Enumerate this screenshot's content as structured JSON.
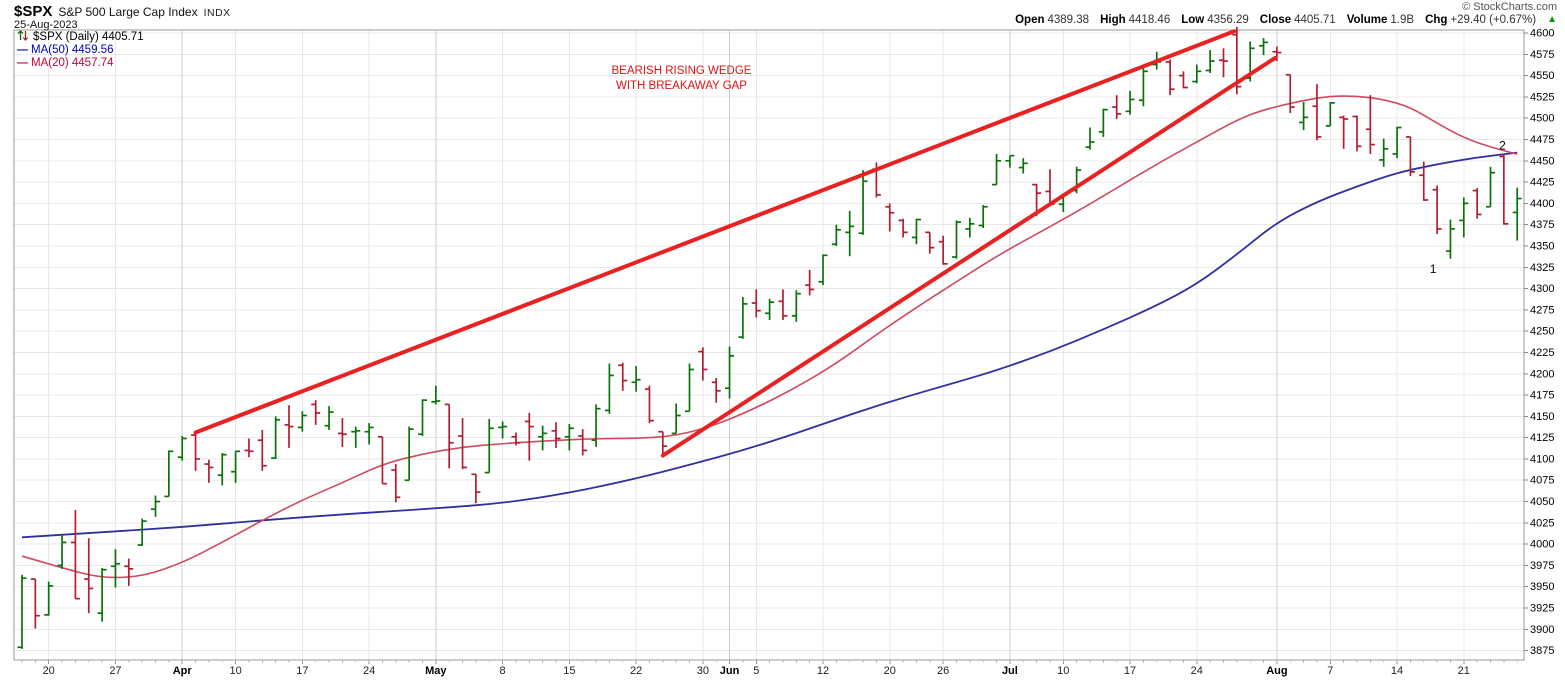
{
  "header": {
    "symbol": "$SPX",
    "name": "S&P 500 Large Cap Index",
    "exchange": "INDX",
    "date": "25-Aug-2023",
    "copyright": "© StockCharts.com",
    "quote": [
      {
        "label": "Open",
        "value": "4389.38"
      },
      {
        "label": "High",
        "value": "4418.46"
      },
      {
        "label": "Low",
        "value": "4356.29"
      },
      {
        "label": "Close",
        "value": "4405.71"
      },
      {
        "label": "Volume",
        "value": "1.9B"
      },
      {
        "label": "Chg",
        "value": "+29.40 (+0.67%)"
      }
    ],
    "chg_direction_icon": "▲",
    "chg_color": "#009900"
  },
  "legend": {
    "series": "$SPX (Daily) 4405.71",
    "ma50": "MA(50) 4459.56",
    "ma20": "MA(20) 4457.74"
  },
  "chart_data": {
    "type": "ohlc-bar",
    "symbol": "$SPX",
    "timeframe": "Daily",
    "title": "S&P 500 Large Cap Index",
    "y_axis": {
      "top_price": 4603.5,
      "bottom_price": 3864,
      "first_tick": 3875,
      "last_tick": 4600,
      "tick_step": 25,
      "grid": true
    },
    "x_ticks": [
      {
        "i": 2,
        "label": "20"
      },
      {
        "i": 7,
        "label": "27"
      },
      {
        "i": 12,
        "label": "Apr",
        "month": true
      },
      {
        "i": 16,
        "label": "10"
      },
      {
        "i": 21,
        "label": "17"
      },
      {
        "i": 26,
        "label": "24"
      },
      {
        "i": 31,
        "label": "May",
        "month": true
      },
      {
        "i": 36,
        "label": "8"
      },
      {
        "i": 41,
        "label": "15"
      },
      {
        "i": 46,
        "label": "22"
      },
      {
        "i": 51,
        "label": "30"
      },
      {
        "i": 53,
        "label": "Jun",
        "month": true
      },
      {
        "i": 55,
        "label": "5"
      },
      {
        "i": 60,
        "label": "12"
      },
      {
        "i": 65,
        "label": "20"
      },
      {
        "i": 69,
        "label": "26"
      },
      {
        "i": 74,
        "label": "Jul",
        "month": true
      },
      {
        "i": 78,
        "label": "10"
      },
      {
        "i": 83,
        "label": "17"
      },
      {
        "i": 88,
        "label": "24"
      },
      {
        "i": 94,
        "label": "Aug",
        "month": true
      },
      {
        "i": 98,
        "label": "7"
      },
      {
        "i": 103,
        "label": "14"
      },
      {
        "i": 108,
        "label": "21"
      }
    ],
    "candles": [
      [
        "3/16",
        3879,
        3964,
        3877,
        3960
      ],
      [
        "3/17",
        3959,
        3959,
        3901,
        3916
      ],
      [
        "3/20",
        3917,
        3956,
        3916,
        3951
      ],
      [
        "3/21",
        3975,
        4010,
        3971,
        4002
      ],
      [
        "3/22",
        4002,
        4040,
        3936,
        3936
      ],
      [
        "3/23",
        3959,
        4007,
        3919,
        3948
      ],
      [
        "3/24",
        3919,
        3972,
        3909,
        3970
      ],
      [
        "3/27",
        3974,
        3994,
        3949,
        3977
      ],
      [
        "3/28",
        3974,
        3983,
        3951,
        3971
      ],
      [
        "3/29",
        3999,
        4030,
        3998,
        4027
      ],
      [
        "3/30",
        4041,
        4057,
        4032,
        4050
      ],
      [
        "3/31",
        4056,
        4110,
        4056,
        4109
      ],
      [
        "4/3",
        4102,
        4127,
        4098,
        4124
      ],
      [
        "4/4",
        4128,
        4133,
        4086,
        4100
      ],
      [
        "4/5",
        4094,
        4099,
        4072,
        4090
      ],
      [
        "4/6",
        4081,
        4107,
        4069,
        4105
      ],
      [
        "4/10",
        4085,
        4109,
        4072,
        4109
      ],
      [
        "4/11",
        4110,
        4124,
        4102,
        4109
      ],
      [
        "4/12",
        4122,
        4134,
        4086,
        4092
      ],
      [
        "4/13",
        4101,
        4150,
        4100,
        4146
      ],
      [
        "4/14",
        4140,
        4163,
        4113,
        4138
      ],
      [
        "4/17",
        4137,
        4156,
        4132,
        4151
      ],
      [
        "4/18",
        4164,
        4169,
        4140,
        4154
      ],
      [
        "4/19",
        4139,
        4162,
        4134,
        4155
      ],
      [
        "4/20",
        4130,
        4148,
        4114,
        4129
      ],
      [
        "4/21",
        4132,
        4138,
        4113,
        4133
      ],
      [
        "4/24",
        4132,
        4142,
        4117,
        4137
      ],
      [
        "4/25",
        4126,
        4126,
        4071,
        4071
      ],
      [
        "4/26",
        4087,
        4094,
        4049,
        4055
      ],
      [
        "4/27",
        4075,
        4138,
        4075,
        4135
      ],
      [
        "4/28",
        4129,
        4170,
        4127,
        4169
      ],
      [
        "5/1",
        4167,
        4186,
        4164,
        4168
      ],
      [
        "5/2",
        4164,
        4164,
        4089,
        4119
      ],
      [
        "5/3",
        4127,
        4148,
        4088,
        4090
      ],
      [
        "5/4",
        4082,
        4082,
        4048,
        4061
      ],
      [
        "5/5",
        4084,
        4147,
        4084,
        4136
      ],
      [
        "5/8",
        4137,
        4144,
        4124,
        4138
      ],
      [
        "5/9",
        4126,
        4131,
        4116,
        4119
      ],
      [
        "5/10",
        4144,
        4154,
        4098,
        4138
      ],
      [
        "5/11",
        4126,
        4139,
        4110,
        4130
      ],
      [
        "5/12",
        4133,
        4143,
        4113,
        4124
      ],
      [
        "5/15",
        4126,
        4141,
        4110,
        4136
      ],
      [
        "5/16",
        4127,
        4135,
        4104,
        4110
      ],
      [
        "5/17",
        4122,
        4164,
        4114,
        4159
      ],
      [
        "5/18",
        4157,
        4212,
        4153,
        4198
      ],
      [
        "5/19",
        4210,
        4213,
        4180,
        4192
      ],
      [
        "5/22",
        4190,
        4209,
        4179,
        4193
      ],
      [
        "5/23",
        4182,
        4186,
        4142,
        4145
      ],
      [
        "5/24",
        4132,
        4132,
        4104,
        4115
      ],
      [
        "5/25",
        4130,
        4165,
        4130,
        4151
      ],
      [
        "5/26",
        4156,
        4212,
        4156,
        4205
      ],
      [
        "5/30",
        4226,
        4231,
        4192,
        4205
      ],
      [
        "5/31",
        4190,
        4195,
        4166,
        4180
      ],
      [
        "6/1",
        4183,
        4232,
        4171,
        4221
      ],
      [
        "6/2",
        4243,
        4290,
        4241,
        4282
      ],
      [
        "6/5",
        4283,
        4299,
        4266,
        4274
      ],
      [
        "6/6",
        4271,
        4288,
        4263,
        4284
      ],
      [
        "6/7",
        4285,
        4299,
        4263,
        4268
      ],
      [
        "6/8",
        4268,
        4298,
        4261,
        4294
      ],
      [
        "6/9",
        4304,
        4322,
        4292,
        4299
      ],
      [
        "6/12",
        4308,
        4340,
        4304,
        4339
      ],
      [
        "6/13",
        4352,
        4375,
        4350,
        4369
      ],
      [
        "6/14",
        4366,
        4391,
        4338,
        4373
      ],
      [
        "6/15",
        4365,
        4439,
        4363,
        4426
      ],
      [
        "6/16",
        4440,
        4448,
        4407,
        4410
      ],
      [
        "6/20",
        4396,
        4400,
        4367,
        4389
      ],
      [
        "6/21",
        4380,
        4382,
        4360,
        4366
      ],
      [
        "6/22",
        4360,
        4382,
        4352,
        4381
      ],
      [
        "6/23",
        4366,
        4366,
        4341,
        4348
      ],
      [
        "6/26",
        4355,
        4362,
        4328,
        4329
      ],
      [
        "6/27",
        4337,
        4380,
        4335,
        4378
      ],
      [
        "6/28",
        4370,
        4383,
        4360,
        4376
      ],
      [
        "6/29",
        4374,
        4398,
        4371,
        4396
      ],
      [
        "6/30",
        4422,
        4458,
        4422,
        4450
      ],
      [
        "7/3",
        4450,
        4456,
        4442,
        4456
      ],
      [
        "7/5",
        4442,
        4453,
        4435,
        4447
      ],
      [
        "7/6",
        4422,
        4423,
        4385,
        4412
      ],
      [
        "7/7",
        4414,
        4440,
        4397,
        4399
      ],
      [
        "7/10",
        4399,
        4412,
        4390,
        4410
      ],
      [
        "7/11",
        4415,
        4443,
        4412,
        4439
      ],
      [
        "7/12",
        4466,
        4489,
        4463,
        4472
      ],
      [
        "7/13",
        4484,
        4511,
        4478,
        4510
      ],
      [
        "7/14",
        4513,
        4527,
        4499,
        4505
      ],
      [
        "7/17",
        4508,
        4532,
        4504,
        4522
      ],
      [
        "7/18",
        4521,
        4562,
        4514,
        4555
      ],
      [
        "7/19",
        4563,
        4578,
        4557,
        4566
      ],
      [
        "7/20",
        4566,
        4569,
        4527,
        4534
      ],
      [
        "7/21",
        4550,
        4555,
        4535,
        4536
      ],
      [
        "7/24",
        4543,
        4563,
        4541,
        4555
      ],
      [
        "7/25",
        4556,
        4580,
        4553,
        4567
      ],
      [
        "7/26",
        4568,
        4582,
        4548,
        4567
      ],
      [
        "7/27",
        4598,
        4607,
        4528,
        4537
      ],
      [
        "7/28",
        4547,
        4590,
        4543,
        4582
      ],
      [
        "7/31",
        4585,
        4594,
        4574,
        4589
      ],
      [
        "8/1",
        4578,
        4584,
        4567,
        4577
      ],
      [
        "8/2",
        4551,
        4551,
        4506,
        4513
      ],
      [
        "8/3",
        4495,
        4519,
        4486,
        4501
      ],
      [
        "8/4",
        4514,
        4540,
        4474,
        4478
      ],
      [
        "8/7",
        4491,
        4519,
        4491,
        4518
      ],
      [
        "8/8",
        4501,
        4503,
        4464,
        4499
      ],
      [
        "8/9",
        4502,
        4503,
        4461,
        4467
      ],
      [
        "8/10",
        4487,
        4527,
        4458,
        4469
      ],
      [
        "8/11",
        4451,
        4476,
        4443,
        4464
      ],
      [
        "8/14",
        4458,
        4490,
        4453,
        4489
      ],
      [
        "8/15",
        4478,
        4478,
        4432,
        4437
      ],
      [
        "8/16",
        4433,
        4449,
        4403,
        4404
      ],
      [
        "8/17",
        4416,
        4421,
        4364,
        4370
      ],
      [
        "8/18",
        4344,
        4381,
        4335,
        4370
      ],
      [
        "8/21",
        4380,
        4407,
        4360,
        4400
      ],
      [
        "8/22",
        4415,
        4418,
        4382,
        4387
      ],
      [
        "8/23",
        4396,
        4443,
        4396,
        4436
      ],
      [
        "8/24",
        4455,
        4458,
        4375,
        4376
      ],
      [
        "8/25",
        4389.38,
        4418.46,
        4356.29,
        4405.71
      ]
    ],
    "ma50": {
      "label": "MA(50)",
      "value": 4459.56,
      "color": "#3030a0",
      "points": [
        [
          0,
          4008
        ],
        [
          6,
          4014
        ],
        [
          12,
          4020
        ],
        [
          18,
          4028
        ],
        [
          24,
          4035
        ],
        [
          31,
          4042
        ],
        [
          36,
          4048
        ],
        [
          41,
          4060
        ],
        [
          46,
          4077
        ],
        [
          50,
          4093
        ],
        [
          54,
          4110
        ],
        [
          58,
          4130
        ],
        [
          62,
          4152
        ],
        [
          66,
          4172
        ],
        [
          70,
          4190
        ],
        [
          73,
          4204
        ],
        [
          77,
          4226
        ],
        [
          81,
          4252
        ],
        [
          85,
          4280
        ],
        [
          88,
          4305
        ],
        [
          91,
          4340
        ],
        [
          94,
          4378
        ],
        [
          97,
          4402
        ],
        [
          100,
          4420
        ],
        [
          103,
          4436
        ],
        [
          106,
          4446
        ],
        [
          109,
          4454
        ],
        [
          112,
          4459.56
        ]
      ]
    },
    "ma20": {
      "label": "MA(20)",
      "value": 4457.74,
      "color": "#ce4a5f",
      "points": [
        [
          0,
          3986
        ],
        [
          3,
          3972
        ],
        [
          6,
          3960
        ],
        [
          9,
          3962
        ],
        [
          12,
          3978
        ],
        [
          15,
          4002
        ],
        [
          18,
          4028
        ],
        [
          21,
          4052
        ],
        [
          24,
          4072
        ],
        [
          27,
          4094
        ],
        [
          30,
          4106
        ],
        [
          33,
          4114
        ],
        [
          36,
          4118
        ],
        [
          39,
          4121
        ],
        [
          43,
          4124
        ],
        [
          46,
          4124
        ],
        [
          49,
          4127
        ],
        [
          52,
          4140
        ],
        [
          55,
          4160
        ],
        [
          58,
          4184
        ],
        [
          61,
          4212
        ],
        [
          64,
          4246
        ],
        [
          67,
          4278
        ],
        [
          70,
          4308
        ],
        [
          73,
          4338
        ],
        [
          76,
          4364
        ],
        [
          79,
          4390
        ],
        [
          82,
          4418
        ],
        [
          85,
          4446
        ],
        [
          88,
          4472
        ],
        [
          91,
          4498
        ],
        [
          93,
          4510
        ],
        [
          96,
          4521
        ],
        [
          98,
          4526
        ],
        [
          100,
          4526
        ],
        [
          102,
          4522
        ],
        [
          104,
          4513
        ],
        [
          106,
          4494
        ],
        [
          108,
          4477
        ],
        [
          110,
          4466
        ],
        [
          112,
          4457.74
        ]
      ]
    },
    "annotations": {
      "wedge_lines": [
        {
          "from": [
            13,
            4131
          ],
          "to": [
            90.8,
            4602
          ]
        },
        {
          "from": [
            48,
            4104
          ],
          "to": [
            93.9,
            4571
          ]
        }
      ],
      "texts": [
        {
          "idx": 49.4,
          "price": 4552,
          "text": "BEARISH RISING WEDGE"
        },
        {
          "idx": 49.4,
          "price": 4534,
          "text": "WITH BREAKAWAY GAP"
        }
      ],
      "markers": [
        {
          "idx": 105.7,
          "price": 4318,
          "text": "1"
        },
        {
          "idx": 110.9,
          "price": 4463,
          "text": "2"
        }
      ]
    },
    "colors": {
      "up": "#0a720a",
      "down": "#b01e32",
      "wedge": "#e82222",
      "annotation_text": "#e01414",
      "grid": "#e8e8e8",
      "grid_month": "#cccccc",
      "border": "#999999",
      "axis_text": "#000000",
      "tick": "#888888"
    }
  }
}
